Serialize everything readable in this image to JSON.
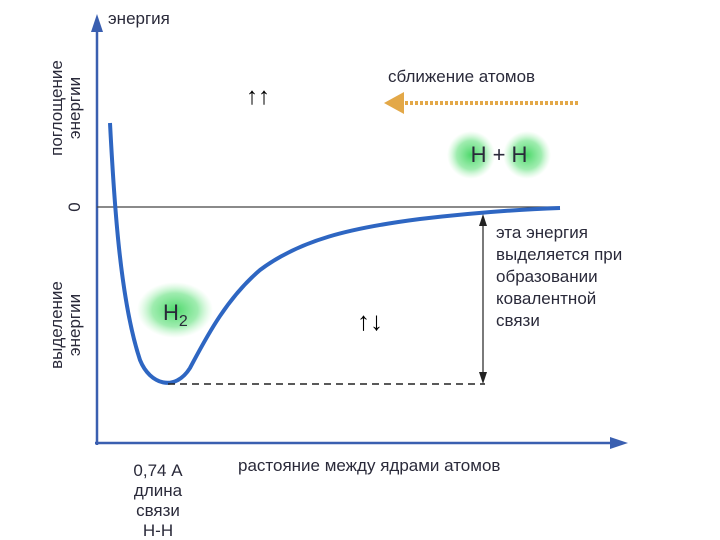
{
  "axis_y_title": "энергия",
  "absorption_label": [
    "поглощение",
    "энергии"
  ],
  "zero_label": "0",
  "release_label": [
    "выделение",
    "энергии"
  ],
  "approach_label": "сближение атомов",
  "atoms_label": "H + H",
  "molecule_label": {
    "letter": "H",
    "sub": "2"
  },
  "parallel_spins": "↑↑",
  "antiparallel_spins": "↑↓",
  "energy_note": [
    "эта энергия",
    "выделяется при",
    "образовании",
    "ковалентной",
    "связи"
  ],
  "axis_x_title": "растояние между ядрами атомов",
  "bond_length_note": [
    "0,74 А",
    "длина",
    "связи",
    "Н-Н"
  ]
}
